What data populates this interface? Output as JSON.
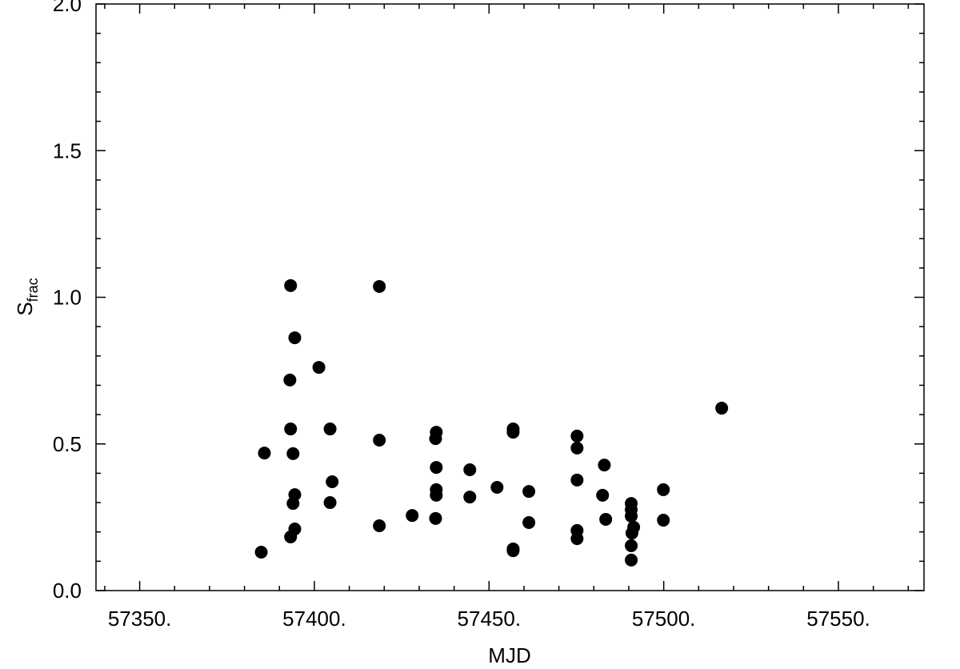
{
  "chart_data": {
    "type": "scatter",
    "x_label": "MJD",
    "y_label": "S",
    "y_label_sub": "frac",
    "color": "#000000",
    "xlim": [
      57337.5,
      57574.5
    ],
    "ylim": [
      0,
      2
    ],
    "xticks": [
      {
        "value": 57350,
        "label": "57350."
      },
      {
        "value": 57400,
        "label": "57400."
      },
      {
        "value": 57450,
        "label": "57450."
      },
      {
        "value": 57500,
        "label": "57500."
      },
      {
        "value": 57550,
        "label": "57550."
      }
    ],
    "yticks": [
      {
        "value": 0,
        "label": "0.0"
      },
      0.5,
      {
        "value": 1,
        "label": "1.0"
      },
      1.5,
      {
        "value": 2,
        "label": "2.0"
      }
    ],
    "minor_xticks": [
      57340,
      57360,
      57370,
      57380,
      57390,
      57410,
      57420,
      57430,
      57440,
      57460,
      57470,
      57480,
      57490,
      57510,
      57520,
      57530,
      57540,
      57560,
      57570
    ],
    "minor_yticks": [
      0.1,
      0.2,
      0.3,
      0.4,
      0.6,
      0.7,
      0.8,
      0.9,
      1.1,
      1.2,
      1.3,
      1.4,
      1.6,
      1.7,
      1.8,
      1.9
    ],
    "x": [
      57384.8,
      57385.7,
      57393.2,
      57393.0,
      57393.2,
      57393.9,
      57394.4,
      57394.4,
      57393.9,
      57394.4,
      57393.2,
      57401.3,
      57404.5,
      57405.1,
      57404.5,
      57418.6,
      57418.6,
      57418.6,
      57428.0,
      57434.9,
      57434.7,
      57434.9,
      57434.9,
      57434.9,
      57434.7,
      57444.5,
      57444.5,
      57452.3,
      57456.9,
      57456.9,
      57456.9,
      57456.9,
      57461.4,
      57461.4,
      57475.2,
      57475.2,
      57475.2,
      57475.2,
      57475.2,
      57483.0,
      57482.5,
      57483.4,
      57490.7,
      57490.7,
      57490.7,
      57491.4,
      57490.9,
      57490.7,
      57490.7,
      57499.9,
      57499.9,
      57516.6
    ],
    "values": [
      0.131,
      0.469,
      1.04,
      0.718,
      0.551,
      0.467,
      0.862,
      0.327,
      0.297,
      0.21,
      0.183,
      0.761,
      0.551,
      0.371,
      0.3,
      1.037,
      0.513,
      0.221,
      0.256,
      0.54,
      0.518,
      0.42,
      0.344,
      0.325,
      0.246,
      0.412,
      0.319,
      0.352,
      0.551,
      0.54,
      0.142,
      0.136,
      0.338,
      0.232,
      0.527,
      0.486,
      0.377,
      0.205,
      0.177,
      0.428,
      0.325,
      0.243,
      0.297,
      0.276,
      0.254,
      0.216,
      0.196,
      0.153,
      0.104,
      0.344,
      0.24,
      0.622
    ]
  }
}
